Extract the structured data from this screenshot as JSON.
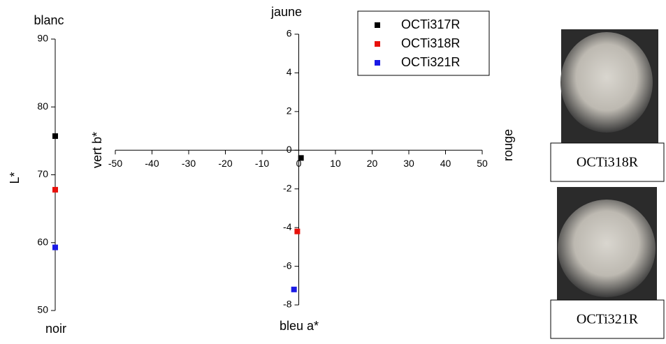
{
  "chart_data": [
    {
      "type": "scatter",
      "top_label": "blanc",
      "bottom_label": "noir",
      "y_label": "L*",
      "ylim": [
        50,
        90
      ],
      "yticks": [
        50,
        60,
        70,
        80,
        90
      ],
      "series": [
        {
          "color": "#000000",
          "values": [
            75.7
          ]
        },
        {
          "color": "#e8100a",
          "values": [
            67.8
          ]
        },
        {
          "color": "#1a1ae6",
          "values": [
            59.3
          ]
        }
      ]
    },
    {
      "type": "scatter",
      "top_label": "jaune",
      "bottom_label": "bleu a*",
      "left_label": "vert  b*",
      "right_label": "rouge",
      "xlim": [
        -50,
        50
      ],
      "xticks": [
        -50,
        -40,
        -30,
        -20,
        -10,
        0,
        10,
        20,
        30,
        40,
        50
      ],
      "ylim": [
        -8,
        6
      ],
      "yticks": [
        -8,
        -6,
        -4,
        -2,
        0,
        2,
        4,
        6
      ],
      "legend": "top-right",
      "series": [
        {
          "name": "OCTi317R",
          "color": "#000000",
          "x": [
            0.6
          ],
          "values": [
            -0.4
          ]
        },
        {
          "name": "OCTi318R",
          "color": "#e8100a",
          "x": [
            -0.4
          ],
          "values": [
            -4.2
          ]
        },
        {
          "name": "OCTi321R",
          "color": "#1a1ae6",
          "x": [
            -1.3
          ],
          "values": [
            -7.2
          ]
        }
      ]
    }
  ],
  "images": [
    {
      "caption": "OCTi318R"
    },
    {
      "caption": "OCTi321R"
    }
  ]
}
